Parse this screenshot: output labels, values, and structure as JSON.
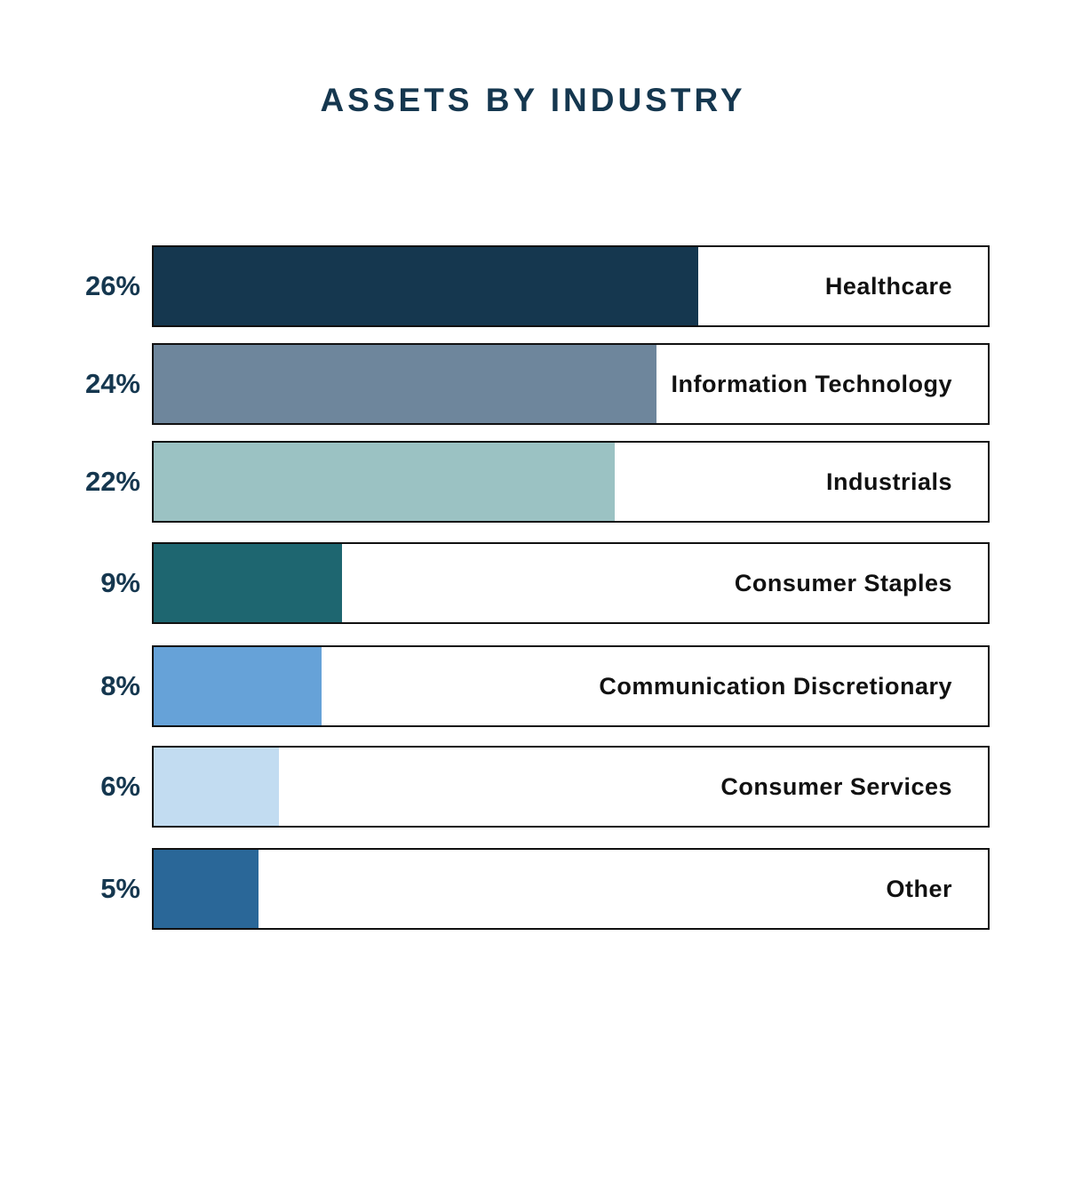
{
  "chart_data": {
    "type": "bar",
    "orientation": "horizontal",
    "title": "ASSETS BY INDUSTRY",
    "categories": [
      "Healthcare",
      "Information Technology",
      "Industrials",
      "Consumer Staples",
      "Communication Discretionary",
      "Consumer Services",
      "Other"
    ],
    "values": [
      26,
      24,
      22,
      9,
      8,
      6,
      5
    ],
    "value_labels": [
      "26%",
      "24%",
      "22%",
      "9%",
      "8%",
      "6%",
      "5%"
    ],
    "colors": [
      "#15374f",
      "#6e869c",
      "#9bc2c3",
      "#1e6670",
      "#66a2d8",
      "#c2dcf1",
      "#2a6798"
    ],
    "xlim": [
      0,
      40
    ],
    "xlabel": "",
    "ylabel": "",
    "grid": false,
    "legend": "none"
  }
}
